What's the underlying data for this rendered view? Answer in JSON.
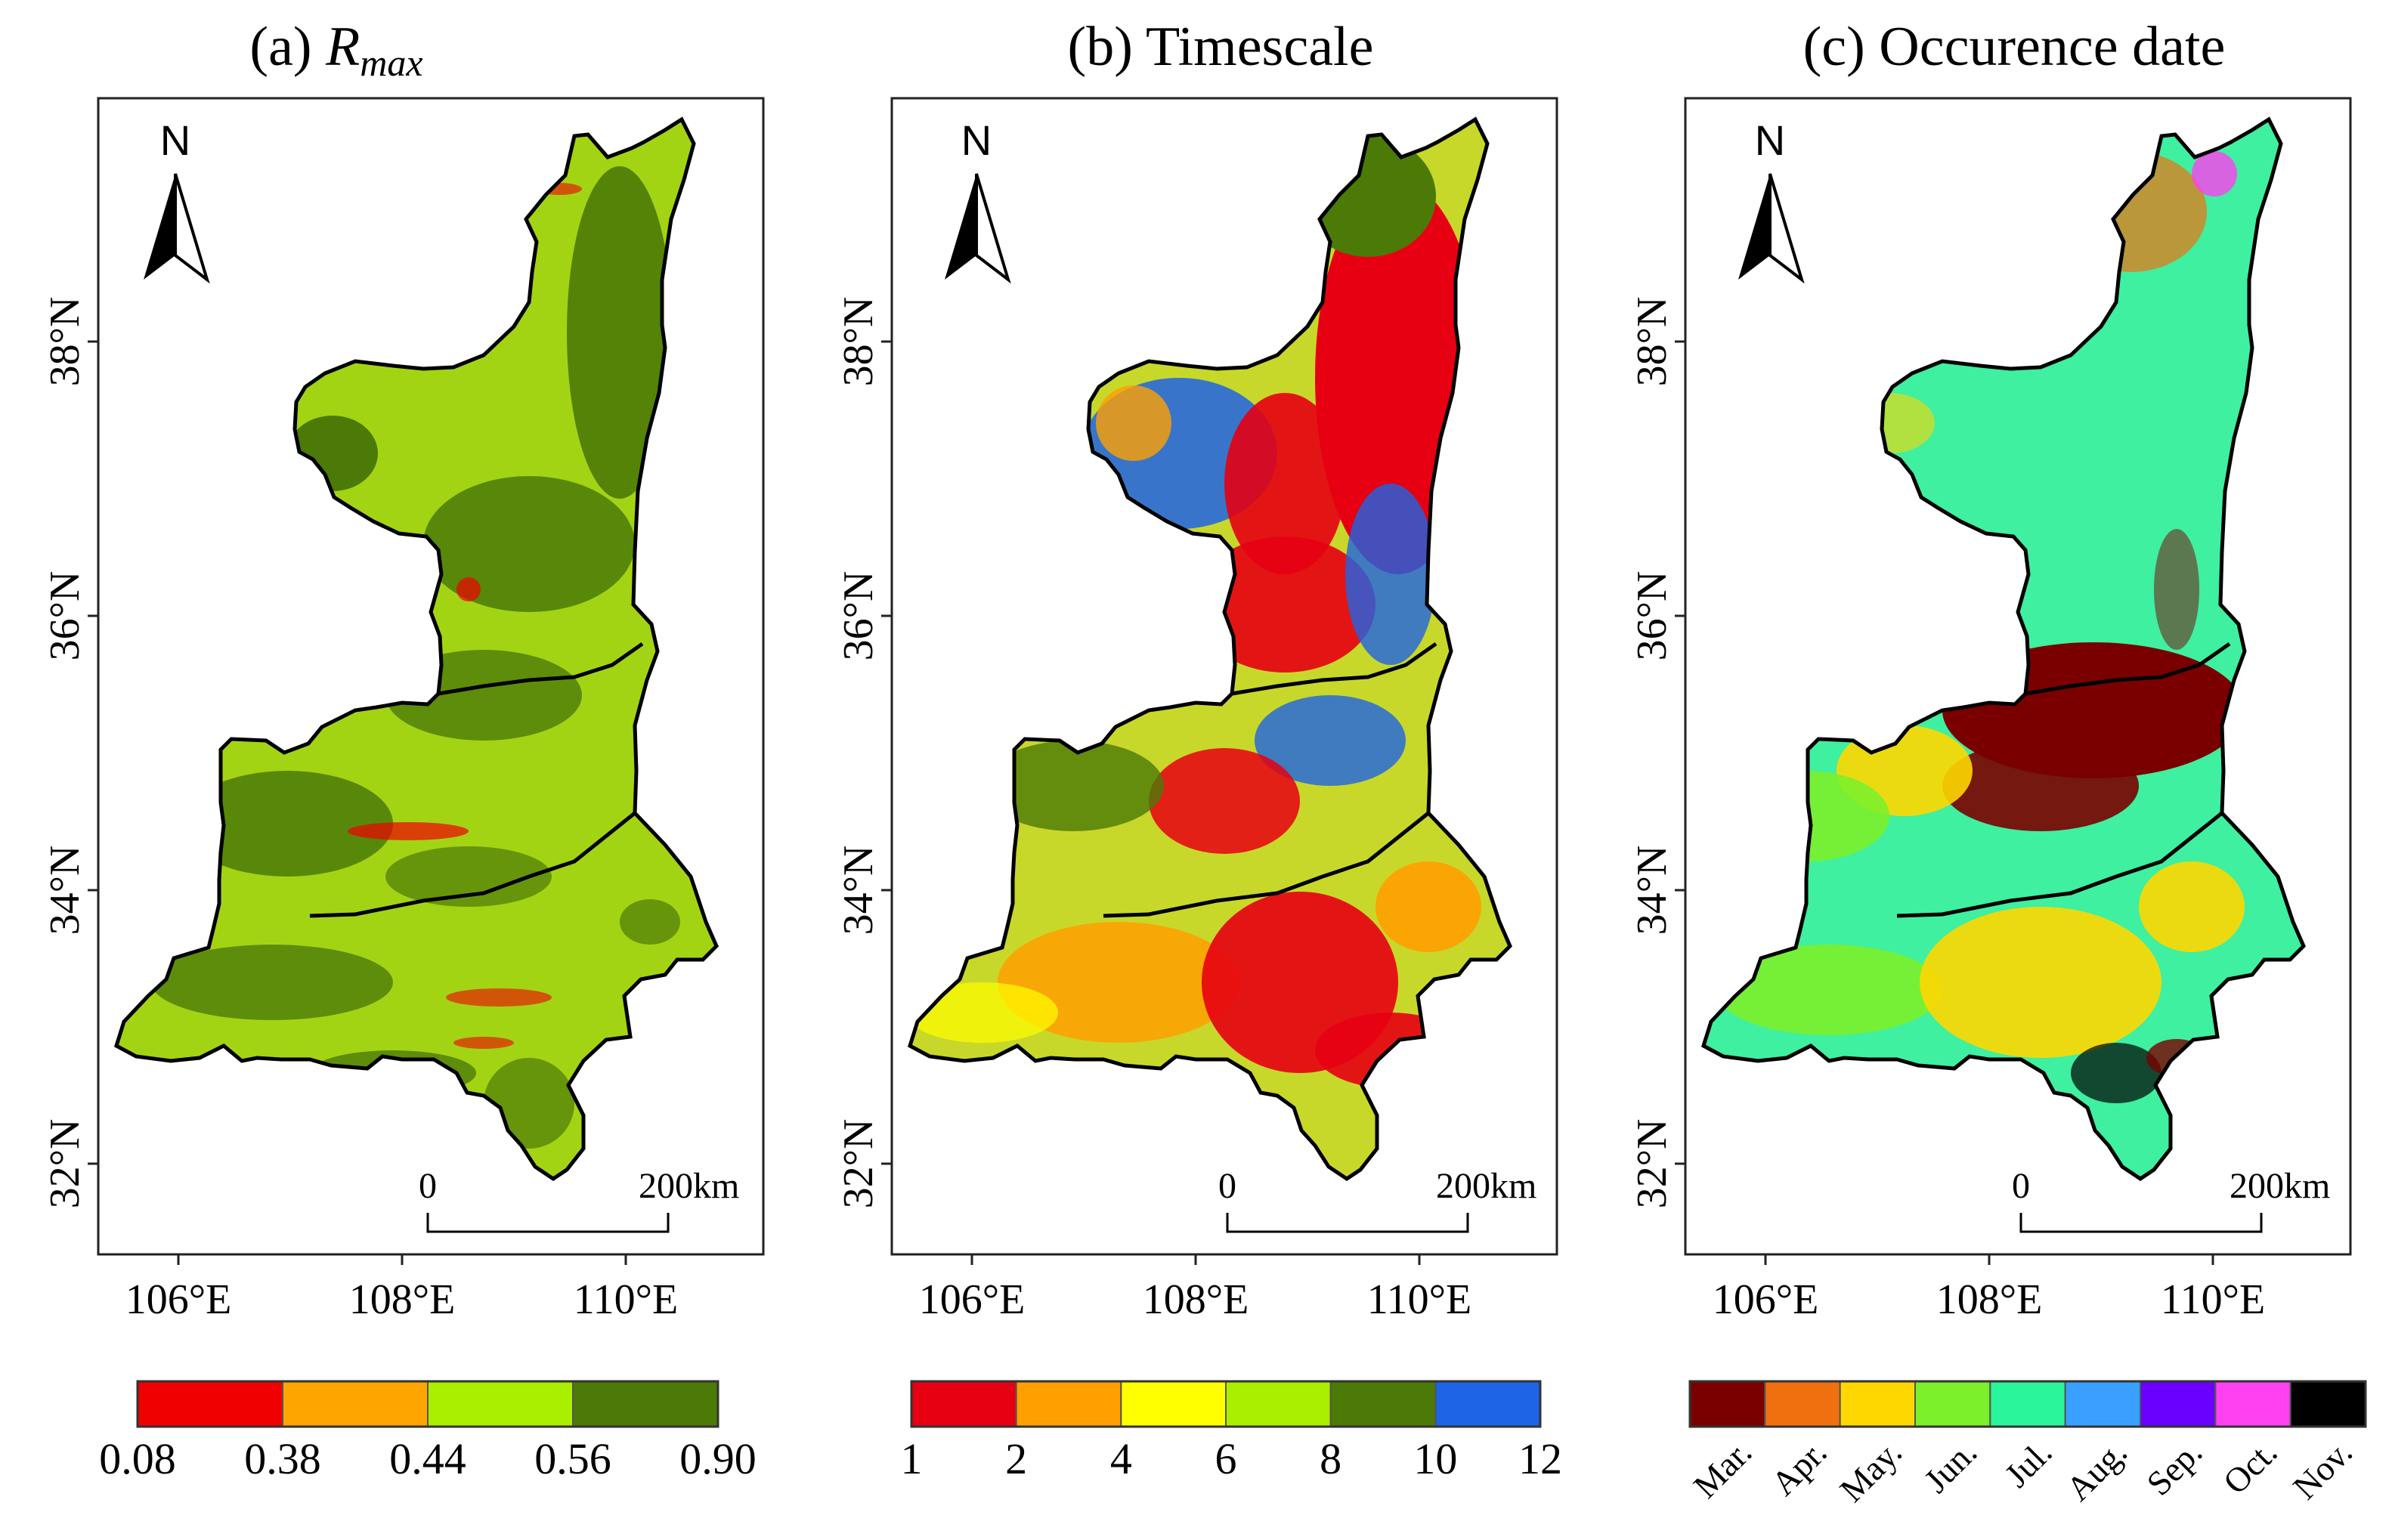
{
  "figure": {
    "panels": [
      {
        "id": "a",
        "title_prefix": "(a) ",
        "title_main": "R",
        "title_sub": "max",
        "north": "N",
        "scale": {
          "start": "0",
          "end": "200km"
        },
        "colorbar": {
          "colors": [
            "#f00000",
            "#ffa500",
            "#aaee00",
            "#4b7a07"
          ],
          "labels": [
            "0.08",
            "0.38",
            "0.44",
            "0.56",
            "0.90"
          ]
        }
      },
      {
        "id": "b",
        "title": "(b) Timescale",
        "north": "N",
        "scale": {
          "start": "0",
          "end": "200km"
        },
        "colorbar": {
          "colors": [
            "#e60012",
            "#ffa000",
            "#ffff00",
            "#aaee00",
            "#4b7a07",
            "#1e64e6"
          ],
          "labels": [
            "1",
            "2",
            "4",
            "6",
            "8",
            "10",
            "12"
          ]
        }
      },
      {
        "id": "c",
        "title": "(c) Occurence date",
        "north": "N",
        "scale": {
          "start": "0",
          "end": "200km"
        },
        "colorbar": {
          "colors": [
            "#7a0000",
            "#f07010",
            "#ffd700",
            "#7cf02a",
            "#2af59a",
            "#3aa0ff",
            "#6a00ff",
            "#ff40f0",
            "#000000"
          ],
          "labels": [
            "Mar.",
            "Apr.",
            "May.",
            "Jun.",
            "Jul.",
            "Aug.",
            "Sep.",
            "Oct.",
            "Nov."
          ]
        }
      }
    ],
    "axes": {
      "lat_labels": [
        "38°N",
        "36°N",
        "34°N",
        "32°N"
      ],
      "lon_labels": [
        "106°E",
        "108°E",
        "110°E"
      ]
    },
    "map_fill": {
      "a": "#a3d414",
      "b": "#c8d82a",
      "c": "#3ef0a0"
    }
  }
}
